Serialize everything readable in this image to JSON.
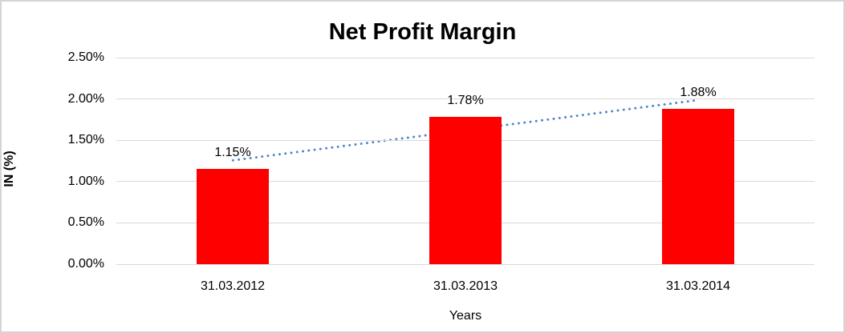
{
  "chart_data": {
    "type": "bar",
    "title": "Net Profit Margin",
    "xlabel": "Years",
    "ylabel": "IN (%)",
    "categories": [
      "31.03.2012",
      "31.03.2013",
      "31.03.2014"
    ],
    "series": [
      {
        "name": "Net Profit Margin",
        "values": [
          1.15,
          1.78,
          1.88
        ]
      }
    ],
    "data_labels": [
      "1.15%",
      "1.78%",
      "1.88%"
    ],
    "y_ticks": [
      {
        "value": 0.0,
        "label": "0.00%"
      },
      {
        "value": 0.5,
        "label": "0.50%"
      },
      {
        "value": 1.0,
        "label": "1.00%"
      },
      {
        "value": 1.5,
        "label": "1.50%"
      },
      {
        "value": 2.0,
        "label": "2.00%"
      },
      {
        "value": 2.5,
        "label": "2.50%"
      }
    ],
    "ylim": [
      0,
      2.5
    ],
    "grid": true,
    "legend": false,
    "colors": {
      "bar": "#FF0000",
      "gridline": "#D9D9D9",
      "trendline": "#4E87C6",
      "text": "#000000"
    },
    "trendline": {
      "type": "linear",
      "style": "dotted",
      "start_value": 1.238,
      "end_value": 1.968
    }
  }
}
